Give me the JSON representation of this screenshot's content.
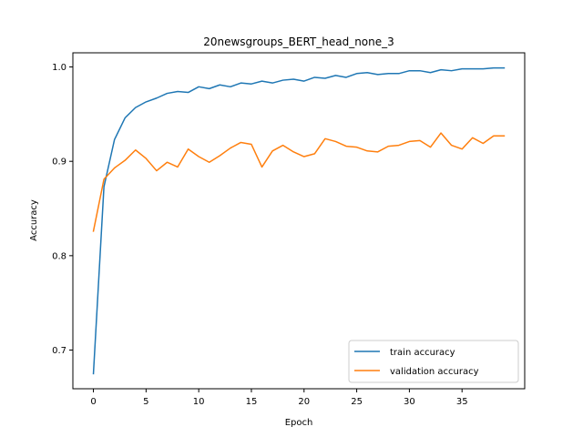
{
  "chart_data": {
    "type": "line",
    "title": "20newsgroups_BERT_head_none_3",
    "xlabel": "Epoch",
    "ylabel": "Accuracy",
    "xlim": [
      -1.95,
      40.95
    ],
    "ylim": [
      0.659,
      1.015
    ],
    "xticks": [
      0,
      5,
      10,
      15,
      20,
      25,
      30,
      35
    ],
    "yticks": [
      0.7,
      0.8,
      0.9,
      1.0
    ],
    "ytick_labels": [
      "0.7",
      "0.8",
      "0.9",
      "1.0"
    ],
    "grid": false,
    "legend_position": "lower-right",
    "x": [
      0,
      1,
      2,
      3,
      4,
      5,
      6,
      7,
      8,
      9,
      10,
      11,
      12,
      13,
      14,
      15,
      16,
      17,
      18,
      19,
      20,
      21,
      22,
      23,
      24,
      25,
      26,
      27,
      28,
      29,
      30,
      31,
      32,
      33,
      34,
      35,
      36,
      37,
      38,
      39
    ],
    "series": [
      {
        "name": "train accuracy",
        "color": "#1f77b4",
        "values": [
          0.675,
          0.873,
          0.923,
          0.946,
          0.957,
          0.963,
          0.967,
          0.972,
          0.974,
          0.973,
          0.979,
          0.977,
          0.981,
          0.979,
          0.983,
          0.982,
          0.985,
          0.983,
          0.986,
          0.987,
          0.985,
          0.989,
          0.988,
          0.991,
          0.989,
          0.993,
          0.994,
          0.992,
          0.993,
          0.993,
          0.996,
          0.996,
          0.994,
          0.997,
          0.996,
          0.998,
          0.998,
          0.998,
          0.999,
          0.999
        ]
      },
      {
        "name": "validation accuracy",
        "color": "#ff7f0e",
        "values": [
          0.826,
          0.881,
          0.893,
          0.901,
          0.912,
          0.903,
          0.89,
          0.899,
          0.894,
          0.913,
          0.905,
          0.899,
          0.906,
          0.914,
          0.92,
          0.918,
          0.894,
          0.911,
          0.917,
          0.91,
          0.905,
          0.908,
          0.924,
          0.921,
          0.916,
          0.915,
          0.911,
          0.91,
          0.916,
          0.917,
          0.921,
          0.922,
          0.915,
          0.93,
          0.917,
          0.913,
          0.925,
          0.919,
          0.927,
          0.927
        ]
      }
    ]
  }
}
